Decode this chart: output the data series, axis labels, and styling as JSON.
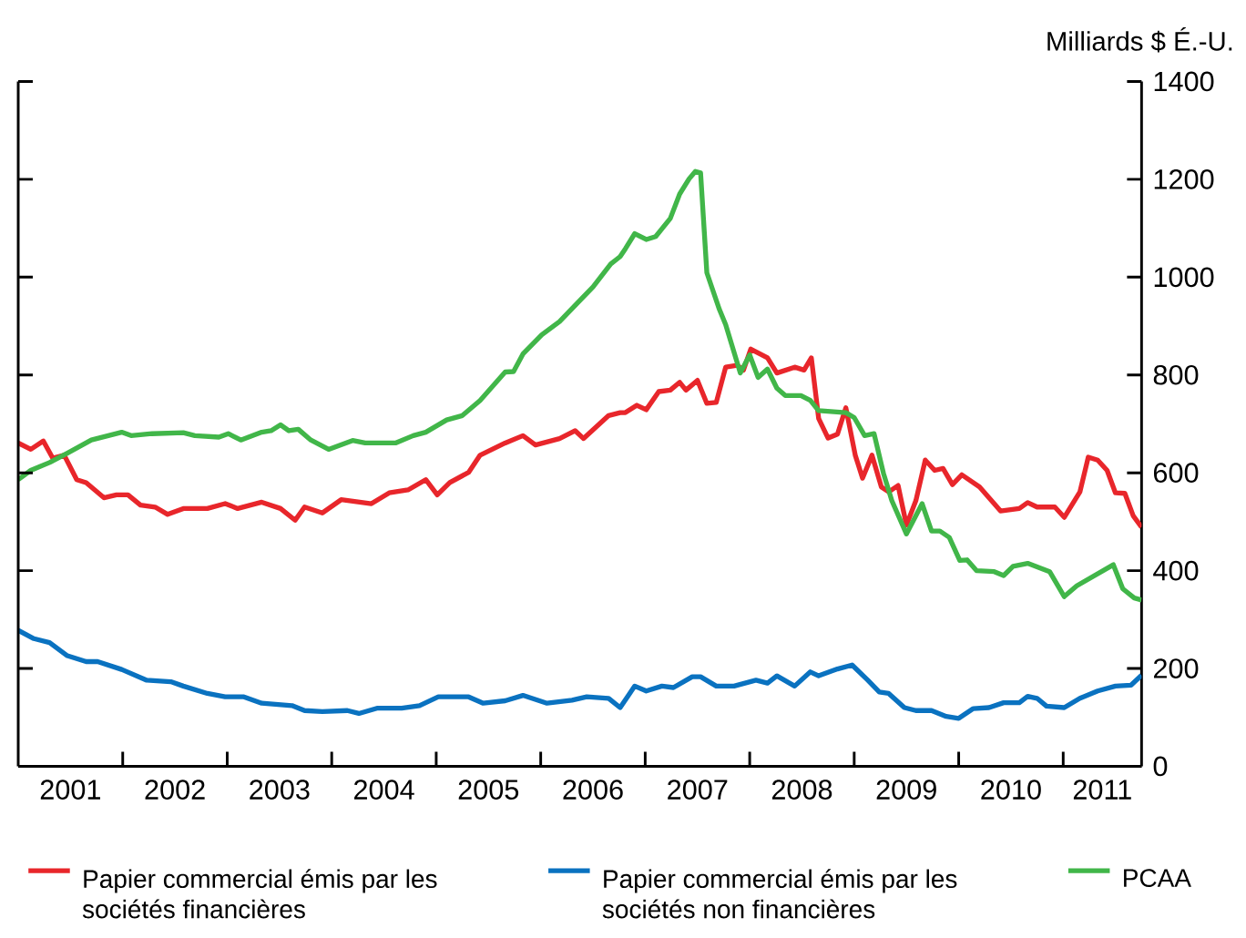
{
  "chart_data": {
    "type": "line",
    "ylabel": "Milliards $ É.-U.",
    "legend": "bottom",
    "line_style": "solid",
    "marker": "none",
    "grid": false,
    "xlim": [
      2001.0,
      2011.75
    ],
    "ylim": [
      0,
      1400
    ],
    "xticks": [
      {
        "value": 2001.5,
        "label": "2001"
      },
      {
        "value": 2002,
        "label": null
      },
      {
        "value": 2002.5,
        "label": "2002"
      },
      {
        "value": 2003,
        "label": null
      },
      {
        "value": 2003.5,
        "label": "2003"
      },
      {
        "value": 2004,
        "label": null
      },
      {
        "value": 2004.5,
        "label": "2004"
      },
      {
        "value": 2005,
        "label": null
      },
      {
        "value": 2005.5,
        "label": "2005"
      },
      {
        "value": 2006,
        "label": null
      },
      {
        "value": 2006.5,
        "label": "2006"
      },
      {
        "value": 2007,
        "label": null
      },
      {
        "value": 2007.5,
        "label": "2007"
      },
      {
        "value": 2008,
        "label": null
      },
      {
        "value": 2008.5,
        "label": "2008"
      },
      {
        "value": 2009,
        "label": null
      },
      {
        "value": 2009.5,
        "label": "2009"
      },
      {
        "value": 2010,
        "label": null
      },
      {
        "value": 2010.5,
        "label": "2010"
      },
      {
        "value": 2011,
        "label": null
      },
      {
        "value": 2011.375,
        "label": "2011"
      }
    ],
    "yticks": [
      0,
      200,
      400,
      600,
      800,
      1000,
      1200,
      1400
    ],
    "series": [
      {
        "name": "Papier commercial émis par les sociétés financières",
        "color": "#e8262b",
        "x": [
          2001.0,
          2001.12,
          2001.24,
          2001.33,
          2001.44,
          2001.56,
          2001.65,
          2001.82,
          2001.94,
          2002.05,
          2002.17,
          2002.31,
          2002.43,
          2002.58,
          2002.81,
          2002.98,
          2003.1,
          2003.33,
          2003.51,
          2003.65,
          2003.74,
          2003.91,
          2004.09,
          2004.38,
          2004.55,
          2004.73,
          2004.9,
          2005.01,
          2005.13,
          2005.31,
          2005.42,
          2005.66,
          2005.83,
          2005.95,
          2006.18,
          2006.33,
          2006.41,
          2006.65,
          2006.76,
          2006.81,
          2006.92,
          2007.01,
          2007.13,
          2007.24,
          2007.33,
          2007.39,
          2007.5,
          2007.59,
          2007.68,
          2007.77,
          2007.88,
          2007.94,
          2008.01,
          2008.17,
          2008.26,
          2008.43,
          2008.52,
          2008.59,
          2008.66,
          2008.75,
          2008.84,
          2008.92,
          2009.01,
          2009.08,
          2009.17,
          2009.26,
          2009.33,
          2009.42,
          2009.5,
          2009.59,
          2009.68,
          2009.77,
          2009.85,
          2009.94,
          2010.03,
          2010.2,
          2010.4,
          2010.58,
          2010.66,
          2010.75,
          2010.92,
          2011.01,
          2011.16,
          2011.24,
          2011.33,
          2011.42,
          2011.5,
          2011.59,
          2011.67,
          2011.75
        ],
        "values": [
          661,
          648,
          665,
          630,
          636,
          586,
          580,
          549,
          555,
          555,
          534,
          530,
          515,
          527,
          527,
          537,
          527,
          540,
          527,
          503,
          530,
          518,
          545,
          537,
          559,
          565,
          586,
          555,
          580,
          601,
          636,
          661,
          676,
          657,
          670,
          686,
          670,
          717,
          723,
          723,
          738,
          729,
          766,
          769,
          785,
          769,
          789,
          742,
          744,
          816,
          820,
          810,
          853,
          835,
          804,
          816,
          810,
          835,
          711,
          671,
          679,
          733,
          636,
          589,
          636,
          571,
          561,
          574,
          493,
          543,
          626,
          605,
          609,
          576,
          596,
          571,
          522,
          527,
          539,
          530,
          530,
          509,
          561,
          632,
          626,
          605,
          559,
          558,
          512,
          489
        ]
      },
      {
        "name": "Papier commercial émis par les sociétés non financières",
        "color": "#0a72c0",
        "x": [
          2001.0,
          2001.15,
          2001.3,
          2001.47,
          2001.65,
          2001.76,
          2001.99,
          2002.23,
          2002.46,
          2002.58,
          2002.81,
          2002.98,
          2003.16,
          2003.33,
          2003.62,
          2003.74,
          2003.91,
          2004.15,
          2004.26,
          2004.44,
          2004.67,
          2004.84,
          2005.02,
          2005.31,
          2005.45,
          2005.66,
          2005.83,
          2006.06,
          2006.3,
          2006.44,
          2006.65,
          2006.76,
          2006.9,
          2007.01,
          2007.16,
          2007.27,
          2007.45,
          2007.53,
          2007.68,
          2007.85,
          2008.06,
          2008.17,
          2008.26,
          2008.43,
          2008.58,
          2008.66,
          2008.84,
          2008.98,
          2009.13,
          2009.24,
          2009.33,
          2009.48,
          2009.59,
          2009.74,
          2009.88,
          2010.0,
          2010.14,
          2010.29,
          2010.43,
          2010.58,
          2010.66,
          2010.75,
          2010.84,
          2011.01,
          2011.16,
          2011.33,
          2011.5,
          2011.65,
          2011.75
        ],
        "values": [
          278,
          261,
          253,
          226,
          214,
          214,
          198,
          176,
          173,
          164,
          149,
          142,
          142,
          129,
          124,
          114,
          112,
          114,
          108,
          119,
          119,
          124,
          142,
          142,
          129,
          134,
          145,
          129,
          135,
          142,
          139,
          120,
          164,
          154,
          164,
          161,
          183,
          183,
          164,
          164,
          176,
          170,
          185,
          164,
          193,
          185,
          199,
          207,
          176,
          152,
          149,
          120,
          114,
          114,
          102,
          98,
          118,
          120,
          130,
          130,
          143,
          139,
          123,
          120,
          139,
          154,
          164,
          166,
          186
        ]
      },
      {
        "name": "PCAA",
        "color": "#41b649",
        "x": [
          2001.0,
          2001.12,
          2001.3,
          2001.47,
          2001.7,
          2001.99,
          2002.08,
          2002.28,
          2002.58,
          2002.69,
          2002.92,
          2003.01,
          2003.13,
          2003.33,
          2003.42,
          2003.51,
          2003.59,
          2003.68,
          2003.8,
          2003.97,
          2004.2,
          2004.32,
          2004.61,
          2004.78,
          2004.9,
          2005.1,
          2005.25,
          2005.42,
          2005.66,
          2005.74,
          2005.83,
          2006.01,
          2006.18,
          2006.35,
          2006.5,
          2006.67,
          2006.76,
          2006.81,
          2006.9,
          2007.01,
          2007.1,
          2007.24,
          2007.33,
          2007.42,
          2007.48,
          2007.53,
          2007.59,
          2007.71,
          2007.77,
          2007.91,
          2008.0,
          2008.08,
          2008.17,
          2008.26,
          2008.34,
          2008.49,
          2008.58,
          2008.66,
          2008.92,
          2009.0,
          2009.1,
          2009.19,
          2009.28,
          2009.36,
          2009.5,
          2009.65,
          2009.74,
          2009.82,
          2009.91,
          2010.01,
          2010.08,
          2010.17,
          2010.34,
          2010.43,
          2010.52,
          2010.66,
          2010.87,
          2011.01,
          2011.13,
          2011.48,
          2011.57,
          2011.68,
          2011.75
        ],
        "values": [
          586,
          605,
          621,
          640,
          667,
          683,
          676,
          680,
          682,
          676,
          673,
          680,
          667,
          683,
          686,
          698,
          686,
          689,
          667,
          648,
          666,
          661,
          661,
          676,
          683,
          708,
          717,
          748,
          806,
          807,
          843,
          882,
          909,
          947,
          980,
          1027,
          1042,
          1058,
          1089,
          1077,
          1083,
          1120,
          1170,
          1201,
          1216,
          1213,
          1009,
          934,
          903,
          804,
          841,
          795,
          812,
          773,
          758,
          758,
          748,
          727,
          723,
          713,
          676,
          680,
          599,
          543,
          475,
          537,
          481,
          481,
          468,
          421,
          422,
          400,
          398,
          390,
          409,
          415,
          398,
          347,
          369,
          412,
          363,
          344,
          340
        ]
      }
    ]
  }
}
